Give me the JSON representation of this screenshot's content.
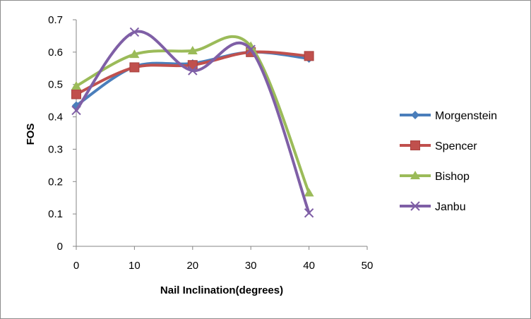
{
  "chart_data": {
    "type": "line",
    "smoothed": true,
    "title": "",
    "xlabel": "Nail Inclination(degrees)",
    "ylabel": "FOS",
    "xlim": [
      0,
      50
    ],
    "ylim": [
      0,
      0.7
    ],
    "xticks": [
      0,
      10,
      20,
      30,
      40,
      50
    ],
    "yticks": [
      0,
      0.1,
      0.2,
      0.3,
      0.4,
      0.5,
      0.6,
      0.7
    ],
    "grid": false,
    "legend_position": "right",
    "x": [
      0,
      10,
      20,
      30,
      40
    ],
    "series": [
      {
        "name": "Morgenstein",
        "values": [
          0.435,
          0.555,
          0.565,
          0.6,
          0.58
        ],
        "color": "#4a7ebb",
        "marker": "diamond"
      },
      {
        "name": "Spencer",
        "values": [
          0.47,
          0.553,
          0.56,
          0.6,
          0.588
        ],
        "color": "#c0504d",
        "marker": "square"
      },
      {
        "name": "Bishop",
        "values": [
          0.495,
          0.593,
          0.604,
          0.618,
          0.165
        ],
        "color": "#9bbb59",
        "marker": "triangle"
      },
      {
        "name": "Janbu",
        "values": [
          0.42,
          0.662,
          0.543,
          0.608,
          0.103
        ],
        "color": "#7f5fa6",
        "marker": "x"
      }
    ]
  }
}
